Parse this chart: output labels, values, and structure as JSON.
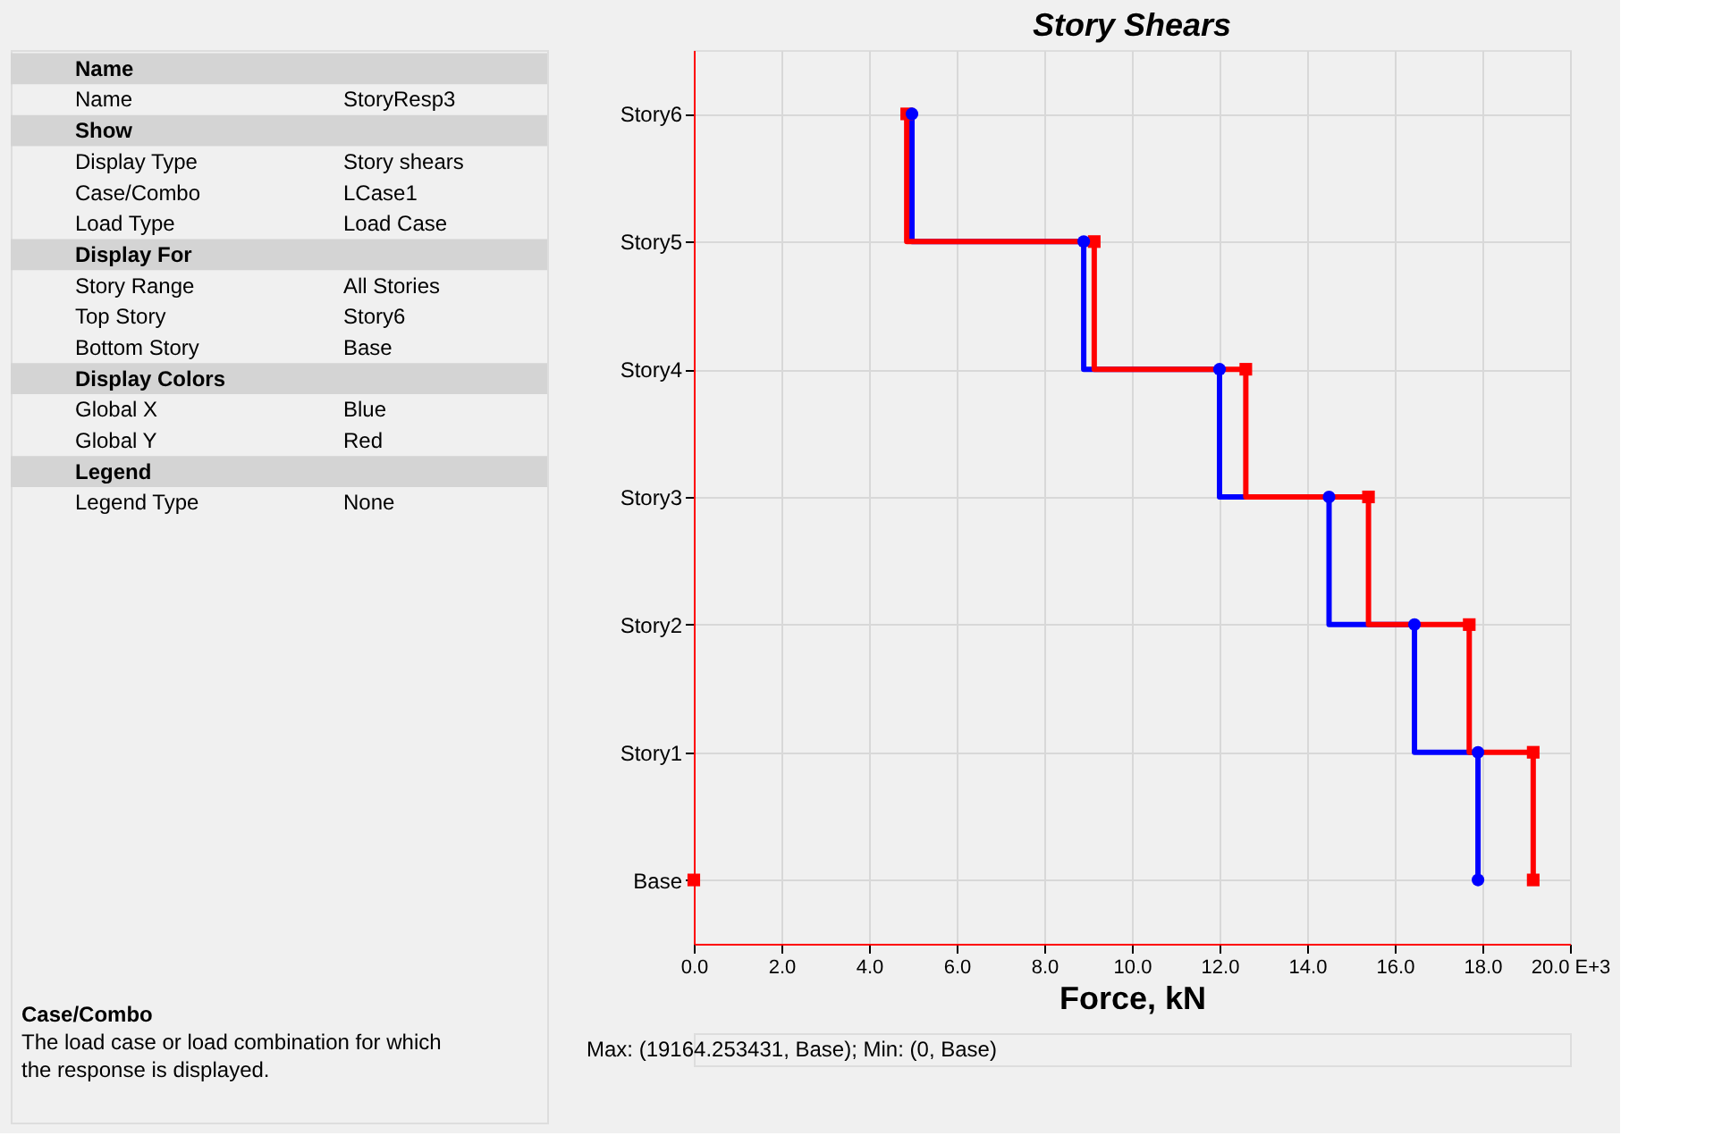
{
  "chart_data": [
    {
      "type": "other",
      "y_categories": [
        "Name",
        "Name",
        "Show",
        "Display Type",
        "Case/Combo",
        "Load Type",
        "Display For",
        "Story Range",
        "Top Story",
        "Bottom Story",
        "Display Colors",
        "Global X",
        "Global Y",
        "Legend",
        "Legend Type"
      ],
      "y2_categories": [
        null,
        "StoryResp3",
        null,
        "Story shears",
        "LCase1",
        "Load Case",
        null,
        "All Stories",
        "Story6",
        "Base",
        null,
        "Blue",
        "Red",
        null,
        "None"
      ],
      "annotations": [
        "Case/Combo",
        "The load case or load combination for which the response is displayed."
      ]
    },
    {
      "type": "step",
      "orientation": "horizontal",
      "title": "Story Shears",
      "xlabel": "Force, kN",
      "categories": [
        "Story6",
        "Story5",
        "Story4",
        "Story3",
        "Story2",
        "Story1",
        "Base"
      ],
      "xlim": [
        0,
        20
      ],
      "xticks": [
        {
          "value": 0,
          "label": "0.0"
        },
        {
          "value": 2,
          "label": "2.0"
        },
        {
          "value": 4,
          "label": "4.0"
        },
        {
          "value": 6,
          "label": "6.0"
        },
        {
          "value": 8,
          "label": "8.0"
        },
        {
          "value": 10,
          "label": "10.0"
        },
        {
          "value": 12,
          "label": "12.0"
        },
        {
          "value": 14,
          "label": "14.0"
        },
        {
          "value": 16,
          "label": "16.0"
        },
        {
          "value": 18,
          "label": "18.0"
        },
        {
          "value": 20,
          "label": "20.0 E+3"
        }
      ],
      "grid": true,
      "series": [
        {
          "color": "#0000ff",
          "marker": "circle",
          "values": [
            4.98,
            8.9,
            12.0,
            14.5,
            16.45,
            17.9,
            17.9
          ]
        },
        {
          "color": "#ff0000",
          "marker": "square",
          "values": [
            4.86,
            9.14,
            12.6,
            15.4,
            17.7,
            19.16,
            19.16
          ]
        },
        {
          "type": "scatter",
          "color": "#ff0000",
          "marker": "square",
          "x": [
            "Base"
          ],
          "values": [
            0
          ]
        }
      ],
      "annotations": [
        "Max: (19164.253431, Base);   Min: (0, Base)"
      ]
    }
  ]
}
